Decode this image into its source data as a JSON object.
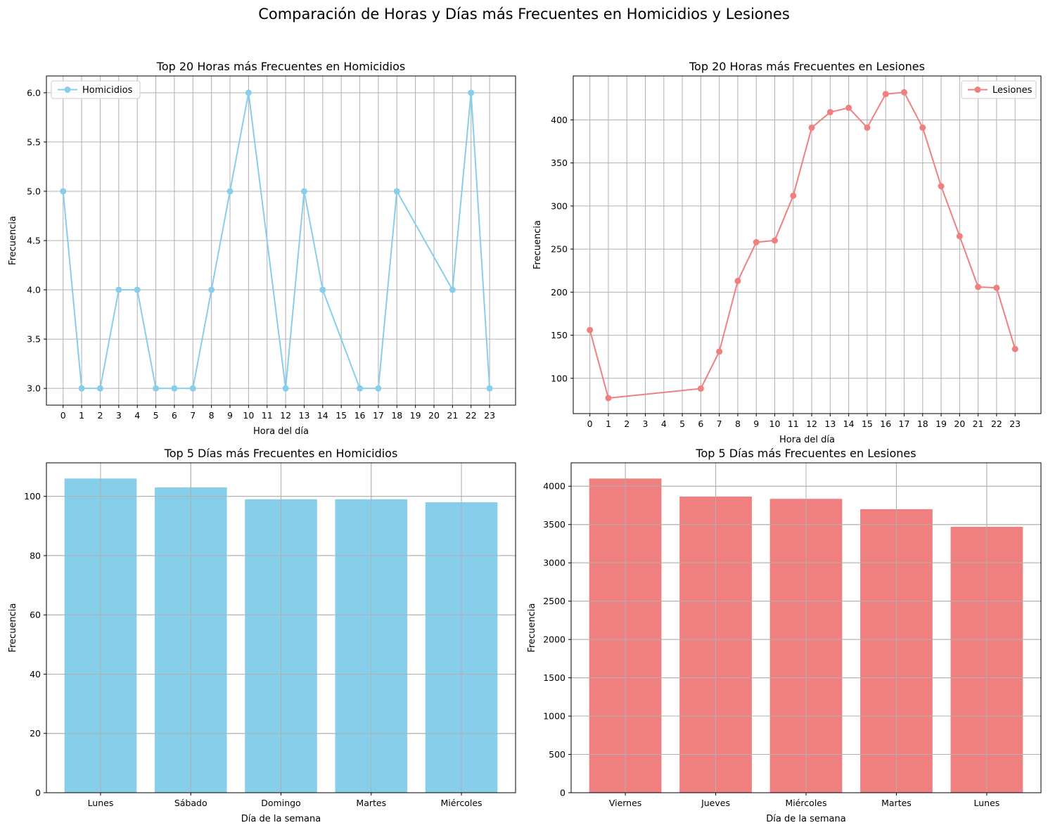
{
  "figure": {
    "suptitle": "Comparación de Horas y Días más Frecuentes en Homicidios y Lesiones"
  },
  "chart_data": [
    {
      "type": "line",
      "title": "Top 20 Horas más Frecuentes en Homicidios",
      "xlabel": "Hora del día",
      "ylabel": "Frecuencia",
      "color": "#87ceeb",
      "legend": {
        "label": "Homicidios",
        "position": "upper-left"
      },
      "grid": true,
      "xlim": [
        -0.9,
        24.4
      ],
      "ylim": [
        2.83,
        6.17
      ],
      "xticks": [
        0,
        1,
        2,
        3,
        4,
        5,
        6,
        7,
        8,
        9,
        10,
        11,
        12,
        13,
        14,
        15,
        16,
        17,
        18,
        19,
        20,
        21,
        22,
        23
      ],
      "yticks": [
        "3.0",
        "3.5",
        "4.0",
        "4.5",
        "5.0",
        "5.5",
        "6.0"
      ],
      "series": [
        {
          "name": "Homicidios",
          "x": [
            0,
            1,
            2,
            3,
            4,
            5,
            6,
            7,
            8,
            9,
            10,
            12,
            13,
            14,
            16,
            17,
            18,
            21,
            22,
            23
          ],
          "values": [
            5,
            3,
            3,
            4,
            4,
            3,
            3,
            3,
            4,
            5,
            6,
            3,
            5,
            4,
            3,
            3,
            5,
            4,
            6,
            3
          ]
        }
      ]
    },
    {
      "type": "line",
      "title": "Top 20 Horas más Frecuentes en Lesiones",
      "xlabel": "Hora del día",
      "ylabel": "Frecuencia",
      "color": "#f08080",
      "legend": {
        "label": "Lesiones",
        "position": "upper-right"
      },
      "grid": true,
      "xlim": [
        -0.9,
        24.4
      ],
      "ylim": [
        59,
        451
      ],
      "xticks": [
        0,
        1,
        2,
        3,
        4,
        5,
        6,
        7,
        8,
        9,
        10,
        11,
        12,
        13,
        14,
        15,
        16,
        17,
        18,
        19,
        20,
        21,
        22,
        23
      ],
      "yticks": [
        "100",
        "150",
        "200",
        "250",
        "300",
        "350",
        "400"
      ],
      "series": [
        {
          "name": "Lesiones",
          "x": [
            0,
            1,
            6,
            7,
            8,
            9,
            10,
            11,
            12,
            13,
            14,
            15,
            16,
            17,
            18,
            19,
            20,
            21,
            22,
            23
          ],
          "values": [
            156,
            77,
            88,
            131,
            213,
            258,
            260,
            312,
            391,
            409,
            414,
            391,
            430,
            432,
            391,
            323,
            265,
            206,
            205,
            134
          ]
        }
      ]
    },
    {
      "type": "bar",
      "title": "Top 5 Días más Frecuentes en Homicidios",
      "xlabel": "Día de la semana",
      "ylabel": "Frecuencia",
      "color": "#87ceeb",
      "grid": true,
      "ylim": [
        0,
        111.3
      ],
      "yticks": [
        "0",
        "20",
        "40",
        "60",
        "80",
        "100"
      ],
      "categories": [
        "Lunes",
        "Sábado",
        "Domingo",
        "Martes",
        "Miércoles"
      ],
      "values": [
        106,
        103,
        99,
        99,
        98
      ]
    },
    {
      "type": "bar",
      "title": "Top 5 Días más Frecuentes en Lesiones",
      "xlabel": "Día de la semana",
      "ylabel": "Frecuencia",
      "color": "#f08080",
      "grid": true,
      "ylim": [
        0,
        4305
      ],
      "yticks": [
        "0",
        "500",
        "1000",
        "1500",
        "2000",
        "2500",
        "3000",
        "3500",
        "4000"
      ],
      "categories": [
        "Viernes",
        "Jueves",
        "Miércoles",
        "Martes",
        "Lunes"
      ],
      "values": [
        4100,
        3865,
        3835,
        3700,
        3470
      ]
    }
  ]
}
